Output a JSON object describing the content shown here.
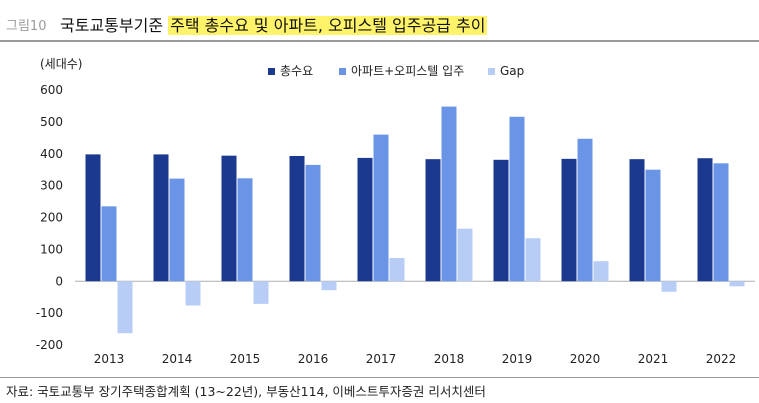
{
  "figure": {
    "label": "그림10",
    "title_plain": "국토교통부기준",
    "title_highlight": "주택 총수요 및 아파트, 오피스텔 입주공급 추이",
    "source": "자료: 국토교통부 장기주택종합계획 (13~22년), 부동산114, 이베스트투자증권 리서치센터"
  },
  "colors": {
    "title_highlight": "#fff36a",
    "series_total": "#1b3a8f",
    "series_supply": "#6a95e6",
    "series_gap": "#b7cdf6"
  },
  "chart_data": {
    "type": "bar",
    "ylabel": "(세대수)",
    "ylim": [
      -200,
      600
    ],
    "yticks": [
      -200,
      -100,
      0,
      100,
      200,
      300,
      400,
      500,
      600
    ],
    "ytick_labels": [
      "-200",
      "-100",
      "0",
      "100",
      "200",
      "300",
      "400",
      "500",
      "600"
    ],
    "grid": false,
    "legend_position": "top-center",
    "categories": [
      "2013",
      "2014",
      "2015",
      "2016",
      "2017",
      "2018",
      "2019",
      "2020",
      "2021",
      "2022"
    ],
    "series": [
      {
        "name": "총수요",
        "color": "#1b3a8f",
        "values": [
          398,
          398,
          394,
          393,
          387,
          383,
          381,
          384,
          383,
          386
        ]
      },
      {
        "name": "아파트+오피스텔 입주",
        "color": "#6a95e6",
        "values": [
          235,
          322,
          323,
          365,
          460,
          548,
          516,
          447,
          350,
          370
        ]
      },
      {
        "name": "Gap",
        "color": "#b7cdf6",
        "values": [
          -163,
          -76,
          -71,
          -28,
          73,
          165,
          135,
          63,
          -33,
          -16
        ]
      }
    ]
  }
}
